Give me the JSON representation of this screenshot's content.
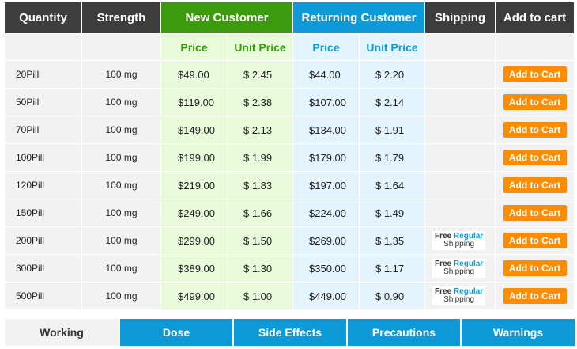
{
  "header": {
    "quantity": "Quantity",
    "strength": "Strength",
    "new_customer": "New Customer",
    "returning_customer": "Returning Customer",
    "shipping": "Shipping",
    "add_to_cart": "Add to cart"
  },
  "subheader": {
    "new_price": "Price",
    "new_unit_price": "Unit Price",
    "ret_price": "Price",
    "ret_unit_price": "Unit Price"
  },
  "colors": {
    "header_dark": "#3d3d3d",
    "new_customer_green": "#3c9a0d",
    "returning_customer_blue": "#0e9ad9",
    "cart_button_orange": "#ff8c00"
  },
  "shipping_badge": {
    "free": "Free",
    "regular": "Regular",
    "shipping": "Shipping"
  },
  "cart_button_label": "Add to Cart",
  "rows": [
    {
      "qty": "20Pill",
      "strength": "100 mg",
      "new_price": "$49.00",
      "new_unit": "$ 2.45",
      "ret_price": "$44.00",
      "ret_unit": "$ 2.20",
      "free_shipping": false
    },
    {
      "qty": "50Pill",
      "strength": "100 mg",
      "new_price": "$119.00",
      "new_unit": "$ 2.38",
      "ret_price": "$107.00",
      "ret_unit": "$ 2.14",
      "free_shipping": false
    },
    {
      "qty": "70Pill",
      "strength": "100 mg",
      "new_price": "$149.00",
      "new_unit": "$ 2.13",
      "ret_price": "$134.00",
      "ret_unit": "$ 1.91",
      "free_shipping": false
    },
    {
      "qty": "100Pill",
      "strength": "100 mg",
      "new_price": "$199.00",
      "new_unit": "$ 1.99",
      "ret_price": "$179.00",
      "ret_unit": "$ 1.79",
      "free_shipping": false
    },
    {
      "qty": "120Pill",
      "strength": "100 mg",
      "new_price": "$219.00",
      "new_unit": "$ 1.83",
      "ret_price": "$197.00",
      "ret_unit": "$ 1.64",
      "free_shipping": false
    },
    {
      "qty": "150Pill",
      "strength": "100 mg",
      "new_price": "$249.00",
      "new_unit": "$ 1.66",
      "ret_price": "$224.00",
      "ret_unit": "$ 1.49",
      "free_shipping": false
    },
    {
      "qty": "200Pill",
      "strength": "100 mg",
      "new_price": "$299.00",
      "new_unit": "$ 1.50",
      "ret_price": "$269.00",
      "ret_unit": "$ 1.35",
      "free_shipping": true
    },
    {
      "qty": "300Pill",
      "strength": "100 mg",
      "new_price": "$389.00",
      "new_unit": "$ 1.30",
      "ret_price": "$350.00",
      "ret_unit": "$ 1.17",
      "free_shipping": true
    },
    {
      "qty": "500Pill",
      "strength": "100 mg",
      "new_price": "$499.00",
      "new_unit": "$ 1.00",
      "ret_price": "$449.00",
      "ret_unit": "$ 0.90",
      "free_shipping": true
    }
  ],
  "tabs": [
    {
      "label": "Working",
      "active": true
    },
    {
      "label": "Dose",
      "active": false
    },
    {
      "label": "Side Effects",
      "active": false
    },
    {
      "label": "Precautions",
      "active": false
    },
    {
      "label": "Warnings",
      "active": false
    }
  ]
}
